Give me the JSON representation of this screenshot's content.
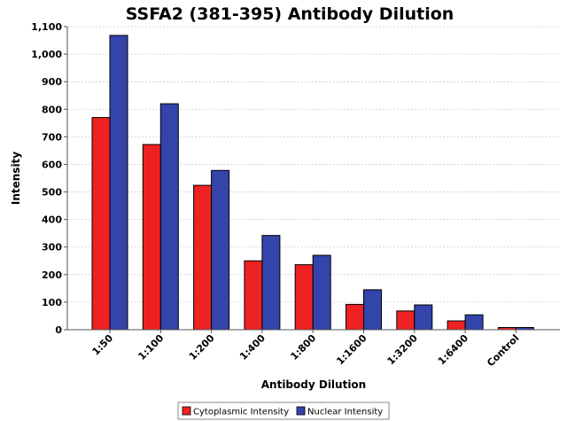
{
  "chart_data": {
    "type": "bar",
    "title": "SSFA2 (381-395) Antibody Dilution",
    "xlabel": "Antibody Dilution",
    "ylabel": "Intensity",
    "ylim": [
      0,
      1100
    ],
    "yticks": [
      0,
      100,
      200,
      300,
      400,
      500,
      600,
      700,
      800,
      900,
      1000,
      1100
    ],
    "ytick_labels": [
      "0",
      "100",
      "200",
      "300",
      "400",
      "500",
      "600",
      "700",
      "800",
      "900",
      "1,000",
      "1,100"
    ],
    "grid": true,
    "legend_position": "bottom-center",
    "categories": [
      "1:50",
      "1:100",
      "1:200",
      "1:400",
      "1:800",
      "1:1600",
      "1:3200",
      "1:6400",
      "Control"
    ],
    "series": [
      {
        "name": "Cytoplasmic Intensity",
        "color": "#ee2222",
        "values": [
          770,
          672,
          524,
          250,
          236,
          92,
          68,
          32,
          8
        ]
      },
      {
        "name": "Nuclear Intensity",
        "color": "#3344aa",
        "values": [
          1068,
          820,
          578,
          342,
          270,
          145,
          90,
          54,
          8
        ]
      }
    ]
  }
}
